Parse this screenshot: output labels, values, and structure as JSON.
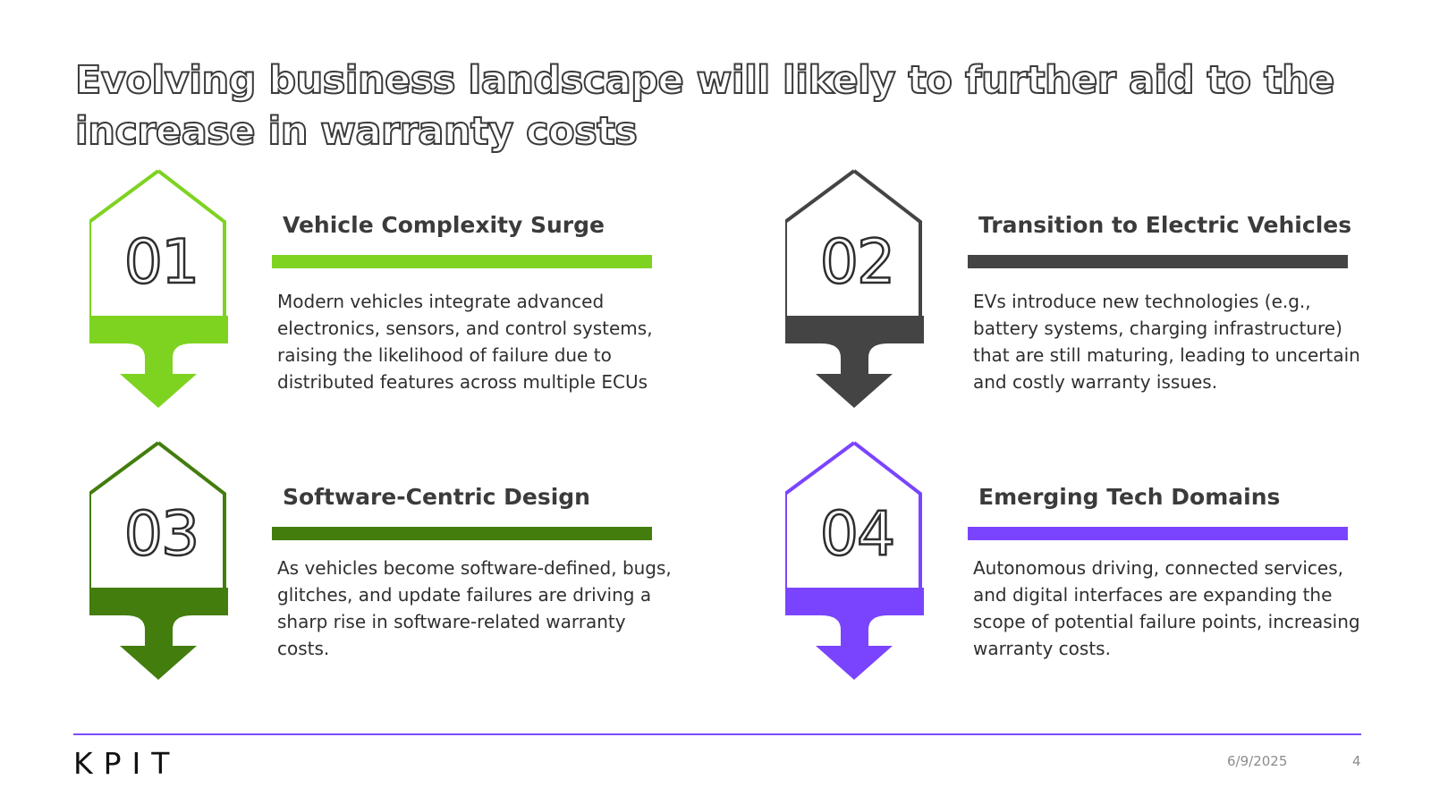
{
  "slide": {
    "title": "Evolving business landscape will likely to further aid to the increase in warranty costs"
  },
  "cards": [
    {
      "number": "01",
      "heading": "Vehicle Complexity Surge",
      "description": "Modern vehicles integrate advanced electronics, sensors, and control systems, raising the likelihood of failure due to distributed features across multiple ECUs",
      "color": "#7ed321"
    },
    {
      "number": "02",
      "heading": "Transition to Electric Vehicles",
      "description": "EVs introduce new technologies (e.g., battery systems, charging infrastructure) that are still maturing, leading to uncertain and costly warranty issues.",
      "color": "#444444"
    },
    {
      "number": "03",
      "heading": "Software-Centric Design",
      "description": "As vehicles become software-defined, bugs, glitches, and update failures are driving a sharp rise in software-related warranty costs.",
      "color": "#437d0d"
    },
    {
      "number": "04",
      "heading": "Emerging Tech Domains",
      "description": "Autonomous driving, connected services, and digital interfaces are expanding the scope of potential failure points, increasing warranty costs.",
      "color": "#7a44ff"
    }
  ],
  "footer": {
    "logo_text": "KPIT",
    "date": "6/9/2025",
    "page_number": "4",
    "rule_color": "#7a4dff"
  }
}
